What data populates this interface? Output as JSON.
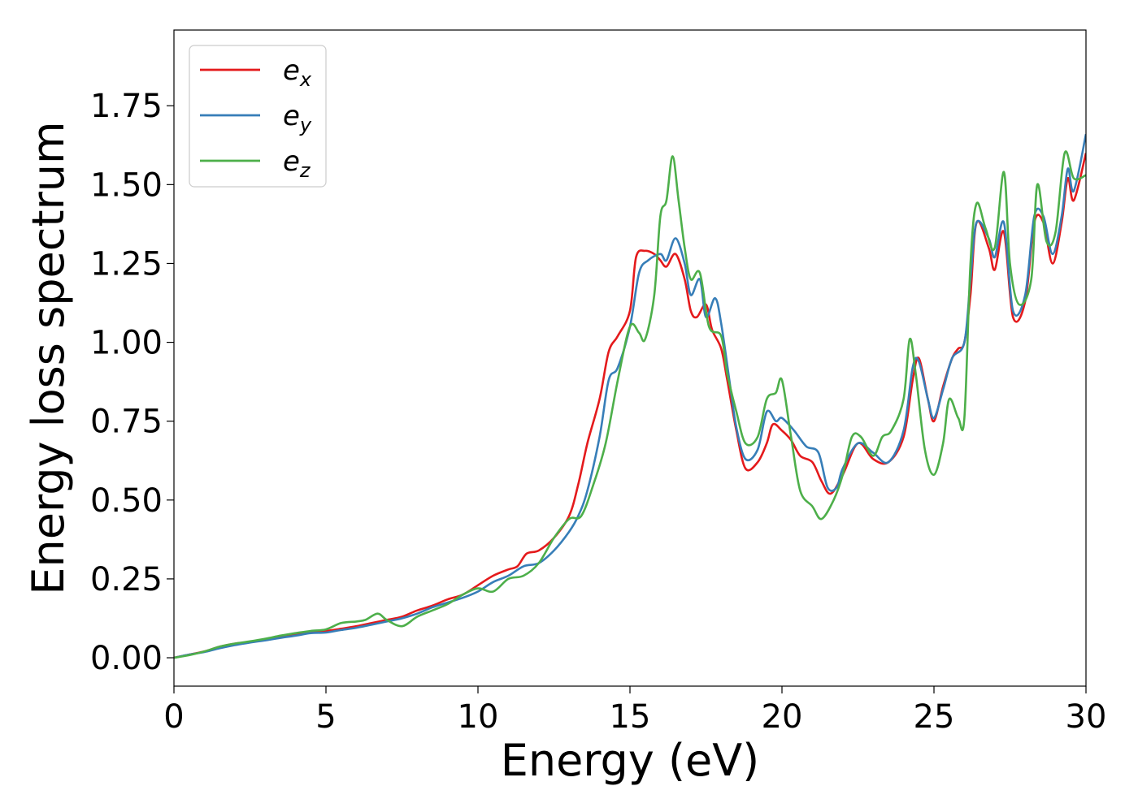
{
  "chart_data": {
    "type": "line",
    "xlabel": "Energy (eV)",
    "ylabel": "Energy loss spectrum",
    "xlim": [
      0,
      30
    ],
    "ylim": [
      -0.09,
      1.99
    ],
    "xticks": [
      0,
      5,
      10,
      15,
      20,
      25,
      30
    ],
    "yticks": [
      0.0,
      0.25,
      0.5,
      0.75,
      1.0,
      1.25,
      1.5,
      1.75
    ],
    "xtick_labels": [
      "0",
      "5",
      "10",
      "15",
      "20",
      "25",
      "30"
    ],
    "ytick_labels": [
      "0.00",
      "0.25",
      "0.50",
      "0.75",
      "1.00",
      "1.25",
      "1.50",
      "1.75"
    ],
    "grid": false,
    "legend_position": "top-left",
    "series": [
      {
        "name": "e",
        "subscript": "x",
        "color": "#e41a1c",
        "points": [
          [
            0,
            0
          ],
          [
            0.5,
            0.01
          ],
          [
            1,
            0.02
          ],
          [
            1.5,
            0.035
          ],
          [
            2,
            0.045
          ],
          [
            2.5,
            0.05
          ],
          [
            3,
            0.058
          ],
          [
            3.5,
            0.067
          ],
          [
            4,
            0.075
          ],
          [
            4.5,
            0.082
          ],
          [
            5,
            0.085
          ],
          [
            5.5,
            0.092
          ],
          [
            6,
            0.1
          ],
          [
            6.5,
            0.11
          ],
          [
            7,
            0.12
          ],
          [
            7.5,
            0.13
          ],
          [
            8,
            0.15
          ],
          [
            8.5,
            0.165
          ],
          [
            9,
            0.185
          ],
          [
            9.5,
            0.2
          ],
          [
            10,
            0.23
          ],
          [
            10.5,
            0.26
          ],
          [
            11,
            0.28
          ],
          [
            11.3,
            0.29
          ],
          [
            11.6,
            0.33
          ],
          [
            12,
            0.34
          ],
          [
            12.5,
            0.38
          ],
          [
            13,
            0.45
          ],
          [
            13.3,
            0.55
          ],
          [
            13.6,
            0.68
          ],
          [
            14,
            0.82
          ],
          [
            14.3,
            0.97
          ],
          [
            14.6,
            1.02
          ],
          [
            15,
            1.1
          ],
          [
            15.2,
            1.27
          ],
          [
            15.5,
            1.29
          ],
          [
            15.8,
            1.28
          ],
          [
            16,
            1.26
          ],
          [
            16.2,
            1.24
          ],
          [
            16.5,
            1.28
          ],
          [
            16.8,
            1.2
          ],
          [
            17,
            1.1
          ],
          [
            17.2,
            1.08
          ],
          [
            17.5,
            1.12
          ],
          [
            17.7,
            1.04
          ],
          [
            18,
            0.98
          ],
          [
            18.2,
            0.88
          ],
          [
            18.5,
            0.72
          ],
          [
            18.8,
            0.6
          ],
          [
            19.2,
            0.62
          ],
          [
            19.5,
            0.68
          ],
          [
            19.7,
            0.74
          ],
          [
            20,
            0.72
          ],
          [
            20.3,
            0.69
          ],
          [
            20.6,
            0.64
          ],
          [
            21,
            0.62
          ],
          [
            21.3,
            0.56
          ],
          [
            21.6,
            0.52
          ],
          [
            22,
            0.58
          ],
          [
            22.5,
            0.68
          ],
          [
            23,
            0.63
          ],
          [
            23.5,
            0.62
          ],
          [
            24,
            0.7
          ],
          [
            24.3,
            0.88
          ],
          [
            24.5,
            0.95
          ],
          [
            24.8,
            0.82
          ],
          [
            25,
            0.75
          ],
          [
            25.3,
            0.86
          ],
          [
            25.6,
            0.95
          ],
          [
            25.8,
            0.98
          ],
          [
            26,
            1.0
          ],
          [
            26.2,
            1.15
          ],
          [
            26.4,
            1.38
          ],
          [
            26.8,
            1.3
          ],
          [
            27,
            1.23
          ],
          [
            27.3,
            1.35
          ],
          [
            27.6,
            1.08
          ],
          [
            28,
            1.13
          ],
          [
            28.3,
            1.38
          ],
          [
            28.6,
            1.38
          ],
          [
            28.9,
            1.25
          ],
          [
            29.2,
            1.38
          ],
          [
            29.4,
            1.52
          ],
          [
            29.6,
            1.45
          ],
          [
            30,
            1.6
          ]
        ]
      },
      {
        "name": "e",
        "subscript": "y",
        "color": "#377eb8",
        "points": [
          [
            0,
            0
          ],
          [
            0.5,
            0.01
          ],
          [
            1,
            0.018
          ],
          [
            1.5,
            0.03
          ],
          [
            2,
            0.04
          ],
          [
            2.5,
            0.048
          ],
          [
            3,
            0.055
          ],
          [
            3.5,
            0.063
          ],
          [
            4,
            0.07
          ],
          [
            4.5,
            0.078
          ],
          [
            5,
            0.08
          ],
          [
            5.5,
            0.088
          ],
          [
            6,
            0.095
          ],
          [
            6.5,
            0.105
          ],
          [
            7,
            0.115
          ],
          [
            7.5,
            0.125
          ],
          [
            8,
            0.14
          ],
          [
            8.5,
            0.16
          ],
          [
            9,
            0.175
          ],
          [
            9.5,
            0.19
          ],
          [
            10,
            0.21
          ],
          [
            10.5,
            0.24
          ],
          [
            11,
            0.26
          ],
          [
            11.5,
            0.29
          ],
          [
            12,
            0.3
          ],
          [
            12.5,
            0.34
          ],
          [
            13,
            0.4
          ],
          [
            13.3,
            0.45
          ],
          [
            13.6,
            0.53
          ],
          [
            14,
            0.7
          ],
          [
            14.3,
            0.88
          ],
          [
            14.6,
            0.92
          ],
          [
            15,
            1.05
          ],
          [
            15.3,
            1.22
          ],
          [
            15.6,
            1.26
          ],
          [
            16,
            1.28
          ],
          [
            16.2,
            1.26
          ],
          [
            16.5,
            1.33
          ],
          [
            16.8,
            1.25
          ],
          [
            17,
            1.15
          ],
          [
            17.3,
            1.2
          ],
          [
            17.5,
            1.08
          ],
          [
            17.8,
            1.14
          ],
          [
            18,
            1.06
          ],
          [
            18.3,
            0.86
          ],
          [
            18.5,
            0.73
          ],
          [
            18.8,
            0.63
          ],
          [
            19.2,
            0.66
          ],
          [
            19.5,
            0.78
          ],
          [
            19.8,
            0.75
          ],
          [
            20,
            0.76
          ],
          [
            20.4,
            0.72
          ],
          [
            20.8,
            0.67
          ],
          [
            21.2,
            0.65
          ],
          [
            21.5,
            0.54
          ],
          [
            21.8,
            0.54
          ],
          [
            22,
            0.6
          ],
          [
            22.5,
            0.68
          ],
          [
            23,
            0.65
          ],
          [
            23.5,
            0.62
          ],
          [
            24,
            0.72
          ],
          [
            24.3,
            0.92
          ],
          [
            24.5,
            0.94
          ],
          [
            24.8,
            0.82
          ],
          [
            25,
            0.76
          ],
          [
            25.3,
            0.85
          ],
          [
            25.6,
            0.95
          ],
          [
            26,
            1.0
          ],
          [
            26.2,
            1.2
          ],
          [
            26.4,
            1.38
          ],
          [
            26.8,
            1.33
          ],
          [
            27,
            1.27
          ],
          [
            27.3,
            1.38
          ],
          [
            27.6,
            1.1
          ],
          [
            28,
            1.15
          ],
          [
            28.3,
            1.4
          ],
          [
            28.6,
            1.4
          ],
          [
            28.9,
            1.28
          ],
          [
            29.2,
            1.4
          ],
          [
            29.4,
            1.55
          ],
          [
            29.6,
            1.48
          ],
          [
            30,
            1.66
          ]
        ]
      },
      {
        "name": "e",
        "subscript": "z",
        "color": "#4daf4a",
        "points": [
          [
            0,
            0
          ],
          [
            0.5,
            0.008
          ],
          [
            1,
            0.02
          ],
          [
            1.5,
            0.035
          ],
          [
            2,
            0.045
          ],
          [
            2.5,
            0.052
          ],
          [
            3,
            0.06
          ],
          [
            3.5,
            0.07
          ],
          [
            4,
            0.078
          ],
          [
            4.5,
            0.085
          ],
          [
            5,
            0.09
          ],
          [
            5.5,
            0.11
          ],
          [
            6,
            0.115
          ],
          [
            6.3,
            0.12
          ],
          [
            6.7,
            0.14
          ],
          [
            7,
            0.12
          ],
          [
            7.5,
            0.1
          ],
          [
            8,
            0.13
          ],
          [
            8.5,
            0.15
          ],
          [
            9,
            0.17
          ],
          [
            9.5,
            0.2
          ],
          [
            10,
            0.22
          ],
          [
            10.5,
            0.21
          ],
          [
            11,
            0.25
          ],
          [
            11.5,
            0.26
          ],
          [
            12,
            0.3
          ],
          [
            12.5,
            0.38
          ],
          [
            13,
            0.44
          ],
          [
            13.4,
            0.45
          ],
          [
            13.8,
            0.55
          ],
          [
            14.2,
            0.68
          ],
          [
            14.6,
            0.88
          ],
          [
            15,
            1.05
          ],
          [
            15.3,
            1.03
          ],
          [
            15.5,
            1.01
          ],
          [
            15.8,
            1.15
          ],
          [
            16,
            1.4
          ],
          [
            16.2,
            1.45
          ],
          [
            16.4,
            1.59
          ],
          [
            16.6,
            1.45
          ],
          [
            16.8,
            1.3
          ],
          [
            17,
            1.2
          ],
          [
            17.3,
            1.22
          ],
          [
            17.6,
            1.05
          ],
          [
            18,
            1.02
          ],
          [
            18.2,
            0.9
          ],
          [
            18.5,
            0.78
          ],
          [
            18.8,
            0.68
          ],
          [
            19.2,
            0.7
          ],
          [
            19.5,
            0.82
          ],
          [
            19.8,
            0.84
          ],
          [
            20,
            0.88
          ],
          [
            20.3,
            0.7
          ],
          [
            20.6,
            0.53
          ],
          [
            21,
            0.48
          ],
          [
            21.3,
            0.44
          ],
          [
            21.7,
            0.5
          ],
          [
            22,
            0.58
          ],
          [
            22.3,
            0.7
          ],
          [
            22.6,
            0.7
          ],
          [
            23,
            0.64
          ],
          [
            23.3,
            0.7
          ],
          [
            23.6,
            0.72
          ],
          [
            24,
            0.82
          ],
          [
            24.2,
            1.01
          ],
          [
            24.4,
            0.9
          ],
          [
            24.7,
            0.66
          ],
          [
            25,
            0.58
          ],
          [
            25.3,
            0.68
          ],
          [
            25.5,
            0.82
          ],
          [
            25.8,
            0.76
          ],
          [
            26,
            0.76
          ],
          [
            26.2,
            1.25
          ],
          [
            26.4,
            1.44
          ],
          [
            26.7,
            1.36
          ],
          [
            27,
            1.3
          ],
          [
            27.3,
            1.54
          ],
          [
            27.5,
            1.25
          ],
          [
            27.8,
            1.12
          ],
          [
            28.2,
            1.2
          ],
          [
            28.4,
            1.5
          ],
          [
            28.7,
            1.32
          ],
          [
            29,
            1.35
          ],
          [
            29.3,
            1.6
          ],
          [
            29.6,
            1.52
          ],
          [
            30,
            1.53
          ]
        ]
      }
    ]
  }
}
